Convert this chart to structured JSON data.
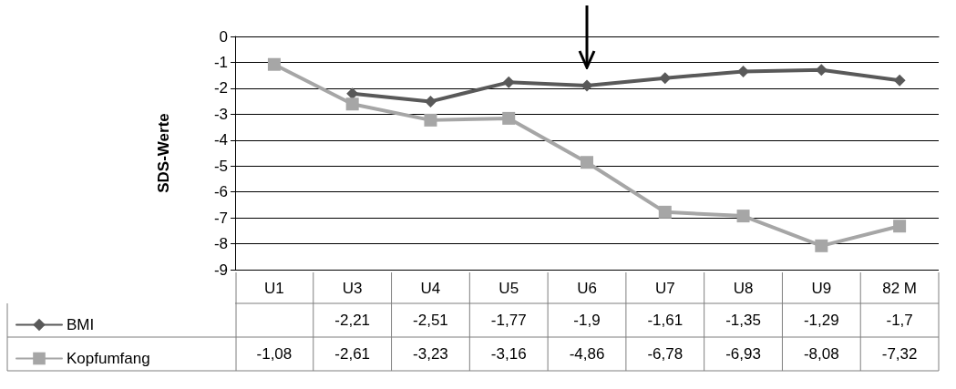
{
  "chart_data": {
    "type": "line",
    "ylabel": "SDS-Werte",
    "categories": [
      "U1",
      "U3",
      "U4",
      "U5",
      "U6",
      "U7",
      "U8",
      "U9",
      "82 M"
    ],
    "series": [
      {
        "name": "BMI",
        "color": "#595959",
        "marker": "diamond",
        "values": [
          null,
          -2.21,
          -2.51,
          -1.77,
          -1.9,
          -1.61,
          -1.35,
          -1.29,
          -1.7
        ],
        "value_labels": [
          null,
          "-2,21",
          "-2,51",
          "-1,77",
          "-1,9",
          "-1,61",
          "-1,35",
          "-1,29",
          "-1,7"
        ]
      },
      {
        "name": "Kopfumfang",
        "color": "#a6a6a6",
        "marker": "square",
        "values": [
          -1.08,
          -2.61,
          -3.23,
          -3.16,
          -4.86,
          -6.78,
          -6.93,
          -8.08,
          -7.32
        ],
        "value_labels": [
          "-1,08",
          "-2,61",
          "-3,23",
          "-3,16",
          "-4,86",
          "-6,78",
          "-6,93",
          "-8,08",
          "-7,32"
        ]
      }
    ],
    "ylim": [
      -9,
      0
    ],
    "yticks": [
      0,
      -1,
      -2,
      -3,
      -4,
      -5,
      -6,
      -7,
      -8,
      -9
    ],
    "grid": "y",
    "legend": "bottom left"
  }
}
